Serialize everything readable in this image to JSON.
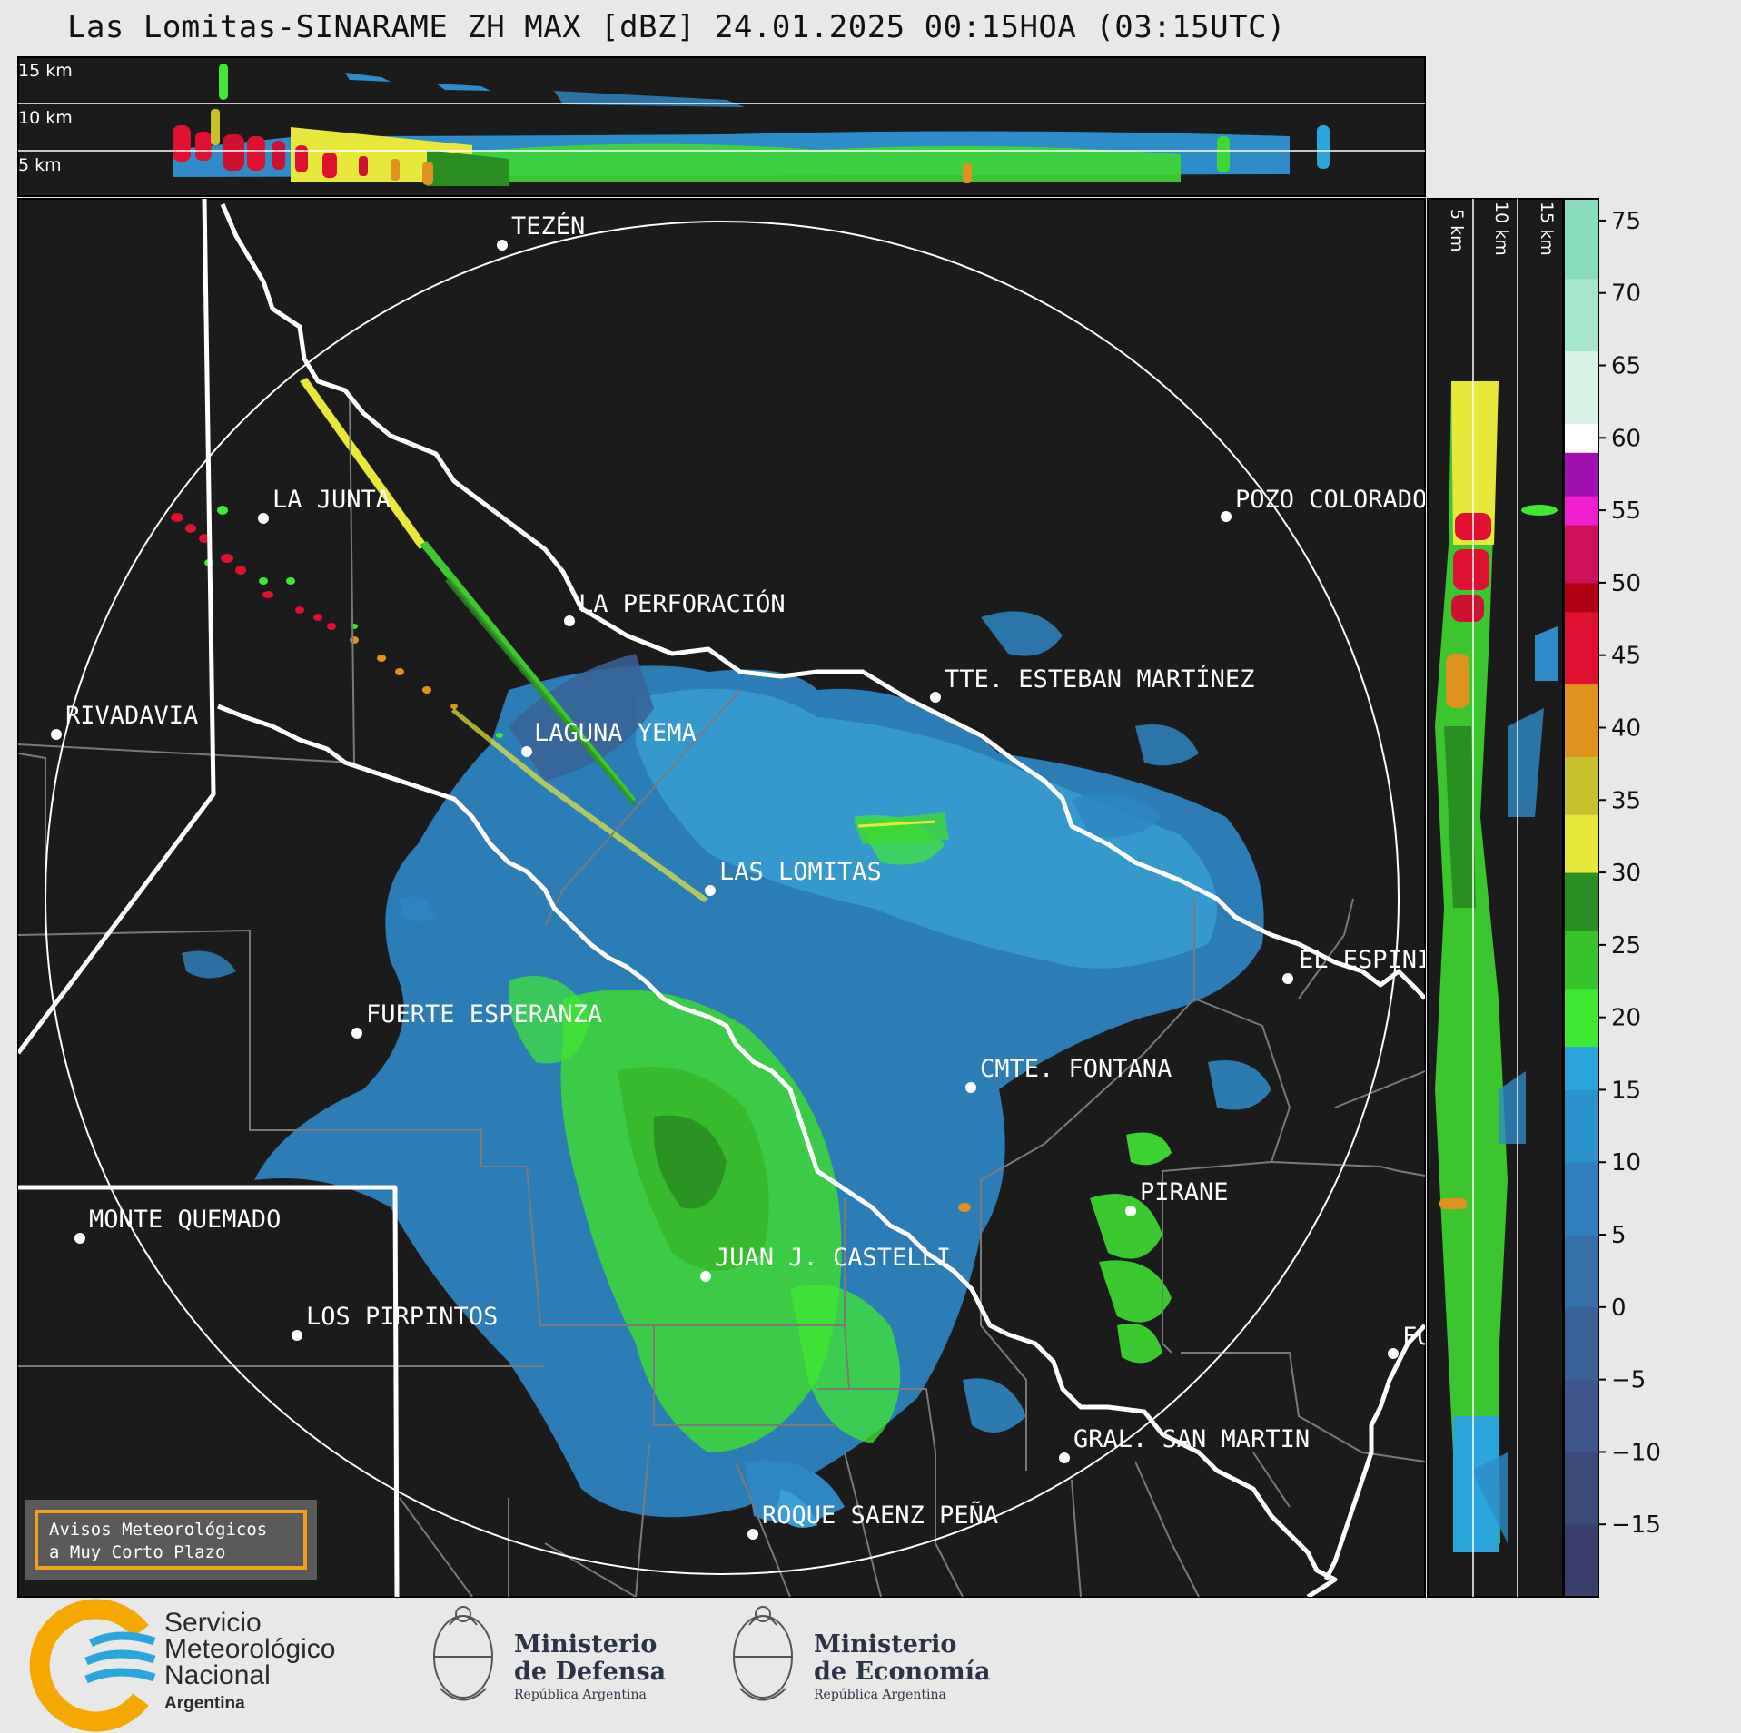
{
  "title": "Las Lomitas-SINARAME ZH MAX [dBZ] 24.01.2025 00:15HOA (03:15UTC)",
  "top_panel": {
    "height_labels": [
      "15 km",
      "10 km",
      "5 km"
    ]
  },
  "right_panel": {
    "height_labels": [
      "5 km",
      "10 km",
      "15 km"
    ]
  },
  "colorbar": {
    "ticks": [
      75,
      70,
      65,
      60,
      55,
      50,
      45,
      40,
      35,
      30,
      25,
      20,
      15,
      10,
      5,
      0,
      -5,
      -10,
      -15
    ],
    "tick_labels": [
      "75",
      "70",
      "65",
      "60",
      "55",
      "50",
      "45",
      "40",
      "35",
      "30",
      "25",
      "20",
      "15",
      "10",
      "5",
      "0",
      "−5",
      "−10",
      "−15"
    ],
    "min": -20,
    "max": 76.5,
    "stops": [
      {
        "from": -20,
        "to": -15,
        "color": "#3a3f6e"
      },
      {
        "from": -15,
        "to": -10,
        "color": "#3c4a7c"
      },
      {
        "from": -10,
        "to": -5,
        "color": "#3e568a"
      },
      {
        "from": -5,
        "to": 0,
        "color": "#3a6296"
      },
      {
        "from": 0,
        "to": 5,
        "color": "#3670a6"
      },
      {
        "from": 5,
        "to": 10,
        "color": "#2f80bc"
      },
      {
        "from": 10,
        "to": 15,
        "color": "#2b92cc"
      },
      {
        "from": 15,
        "to": 18,
        "color": "#2aa6dc"
      },
      {
        "from": 18,
        "to": 22,
        "color": "#3fe832"
      },
      {
        "from": 22,
        "to": 26,
        "color": "#37c42b"
      },
      {
        "from": 26,
        "to": 30,
        "color": "#2a8f22"
      },
      {
        "from": 30,
        "to": 34,
        "color": "#e8e83a"
      },
      {
        "from": 34,
        "to": 38,
        "color": "#c9c02e"
      },
      {
        "from": 38,
        "to": 43,
        "color": "#e0921e"
      },
      {
        "from": 43,
        "to": 48,
        "color": "#e01030"
      },
      {
        "from": 48,
        "to": 50,
        "color": "#b00010"
      },
      {
        "from": 50,
        "to": 54,
        "color": "#d0105a"
      },
      {
        "from": 54,
        "to": 56,
        "color": "#f020d0"
      },
      {
        "from": 56,
        "to": 59,
        "color": "#a010b0"
      },
      {
        "from": 59,
        "to": 61,
        "color": "#ffffff"
      },
      {
        "from": 61,
        "to": 66,
        "color": "#d8f2e6"
      },
      {
        "from": 66,
        "to": 71,
        "color": "#a8e6cc"
      },
      {
        "from": 71,
        "to": 76.5,
        "color": "#88dcbc"
      }
    ]
  },
  "cities": [
    {
      "name": "TEZÉN"
    },
    {
      "name": "LA JUNTA"
    },
    {
      "name": "POZO COLORADO"
    },
    {
      "name": "LA PERFORACIÓN"
    },
    {
      "name": "TTE. ESTEBAN MARTÍNEZ"
    },
    {
      "name": "RIVADAVIA"
    },
    {
      "name": "LAGUNA YEMA"
    },
    {
      "name": "LAS LOMITAS"
    },
    {
      "name": "EL ESPINILLO"
    },
    {
      "name": "FUERTE ESPERANZA"
    },
    {
      "name": "CMTE. FONTANA"
    },
    {
      "name": "PIRANE"
    },
    {
      "name": "MONTE QUEMADO"
    },
    {
      "name": "JUAN J. CASTELLI"
    },
    {
      "name": "LOS PIRPINTOS"
    },
    {
      "name": "GRAL. SAN MARTIN"
    },
    {
      "name": "ROQUE SAENZ PEÑA"
    },
    {
      "name": "FORMOSA"
    }
  ],
  "alert_box": {
    "line1": "Avisos Meteorológicos",
    "line2": "a Muy Corto Plazo"
  },
  "logos": {
    "smn": {
      "line1": "Servicio",
      "line2": "Meteorológico",
      "line3": "Nacional",
      "line4": "Argentina"
    },
    "defensa": {
      "line1": "Ministerio",
      "line2": "de Defensa",
      "line3": "República Argentina"
    },
    "economia": {
      "line1": "Ministerio",
      "line2": "de Economía",
      "line3": "República Argentina"
    }
  },
  "colors": {
    "map_background": "#1b1b1b",
    "page_background": "#e8e8e8",
    "smn_blue": "#2aa6dc",
    "smn_orange": "#f5a800",
    "alert_border": "#f0a01c"
  }
}
